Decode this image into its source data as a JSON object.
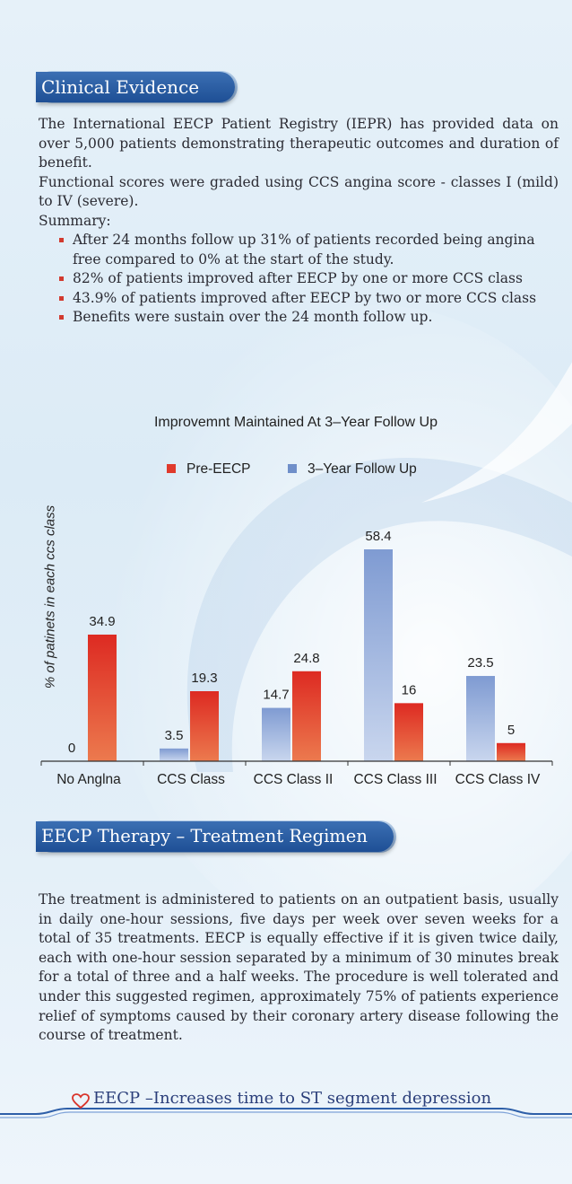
{
  "clinical": {
    "heading": "Clinical Evidence",
    "p1": "The International EECP Patient Registry (IEPR) has provided data on over 5,000 patients demonstrating therapeutic outcomes and duration of benefit.",
    "p2": "Functional scores were graded using CCS angina score - classes I (mild) to IV (severe).",
    "summary_label": "Summary:",
    "bullets": [
      "After 24 months follow up 31% of patients recorded being angina free compared to 0% at the start of the study.",
      "82% of patients improved after EECP by one or more CCS class",
      "43.9% of patients improved after EECP by two or more CCS class",
      "Benefits were sustain over the 24 month follow up."
    ]
  },
  "chart_data": {
    "type": "bar",
    "title": "Improvemnt Maintained At 3–Year Follow Up",
    "ylabel": "% of patinets in each ccs class",
    "categories": [
      "No Anglna",
      "CCS Class",
      "CCS Class II",
      "CCS Class III",
      "CCS Class IV"
    ],
    "series": [
      {
        "name": "3–Year Follow Up",
        "values": [
          0,
          3.5,
          14.7,
          58.4,
          23.5
        ],
        "color": "#6f8fc9"
      },
      {
        "name": "Pre-EECP",
        "values": [
          34.9,
          19.3,
          24.8,
          16,
          5
        ],
        "color": "#e03a2c"
      }
    ],
    "data_labels_blue": [
      "0",
      "3.5",
      "14.7",
      "58.4",
      "23.5"
    ],
    "data_labels_red": [
      "34.9",
      "19.3",
      "24.8",
      "16",
      "5"
    ],
    "legend": [
      "Pre-EECP",
      "3–Year Follow Up"
    ],
    "legend_position": "top",
    "ylim": [
      0,
      62
    ],
    "grid": false
  },
  "regimen": {
    "heading": "EECP Therapy – Treatment Regimen",
    "body": "The treatment is administered to patients on an outpatient basis, usually in daily one-hour sessions, five days per week over seven weeks for a total of 35 treatments. EECP is equally effective if it is given twice daily, each with one-hour session separated by a minimum of 30 minutes break for a total of three and a half weeks. The procedure is well tolerated and under this suggested regimen, approximately 75% of patients experience relief of symptoms caused by their coronary artery disease following the course of treatment."
  },
  "footer": {
    "text": "EECP –Increases time to ST segment depression",
    "icon": "heart-outline-icon",
    "icon_color": "#d9342a"
  },
  "colors": {
    "header_blue": "#1e4f95",
    "bullet_red": "#d23a2f",
    "line_blue": "#2e5fa8"
  }
}
